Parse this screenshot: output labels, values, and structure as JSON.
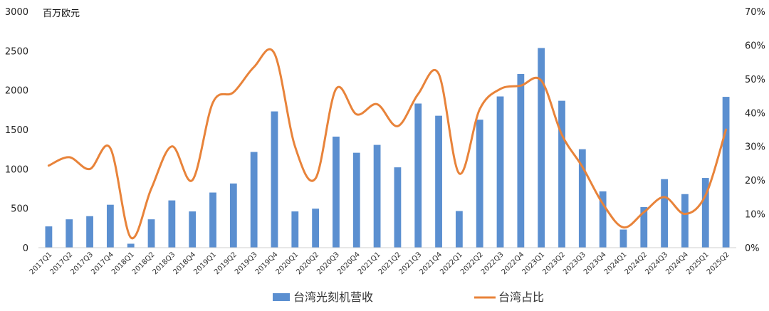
{
  "chart_data": {
    "type": "bar",
    "unit_label": "百万欧元",
    "categories": [
      "2017Q1",
      "2017Q2",
      "2017Q3",
      "2017Q4",
      "2018Q1",
      "2018Q2",
      "2018Q3",
      "2018Q4",
      "2019Q1",
      "2019Q2",
      "2019Q3",
      "2019Q4",
      "2020Q1",
      "2020Q2",
      "2020Q3",
      "2020Q4",
      "2021Q1",
      "2021Q2",
      "2021Q3",
      "2021Q4",
      "2022Q1",
      "2022Q2",
      "2022Q3",
      "2022Q4",
      "2023Q1",
      "2023Q2",
      "2023Q3",
      "2023Q4",
      "2024Q1",
      "2024Q2",
      "2024Q3",
      "2024Q4",
      "2025Q1",
      "2025Q2"
    ],
    "left_axis": {
      "min": 0,
      "max": 3000,
      "ticks": [
        0,
        500,
        1000,
        1500,
        2000,
        2500,
        3000
      ]
    },
    "right_axis": {
      "min": 0,
      "max": 70,
      "ticks": [
        "0%",
        "10%",
        "20%",
        "30%",
        "40%",
        "50%",
        "60%",
        "70%"
      ]
    },
    "series": [
      {
        "name": "台湾光刻机营收",
        "kind": "bar",
        "axis": "left",
        "color": "#5b8fd0",
        "values": [
          270,
          360,
          400,
          545,
          50,
          360,
          600,
          460,
          700,
          815,
          1215,
          1730,
          460,
          495,
          1410,
          1205,
          1305,
          1020,
          1830,
          1675,
          465,
          1625,
          1920,
          2205,
          2535,
          1865,
          1250,
          715,
          230,
          515,
          870,
          680,
          885,
          1915
        ]
      },
      {
        "name": "台湾占比",
        "kind": "line",
        "axis": "right",
        "color": "#e8833a",
        "values": [
          24.3,
          26.8,
          23.3,
          29.5,
          3.0,
          17.5,
          30.0,
          20.0,
          43.0,
          46.0,
          53.5,
          57.5,
          30.0,
          20.5,
          47.0,
          39.5,
          42.5,
          36.0,
          45.5,
          51.5,
          22.0,
          41.0,
          47.0,
          48.0,
          49.5,
          33.5,
          24.0,
          13.0,
          6.0,
          10.5,
          15.0,
          10.0,
          15.5,
          35.0
        ]
      }
    ],
    "legend": {
      "placement": "bottom"
    }
  }
}
